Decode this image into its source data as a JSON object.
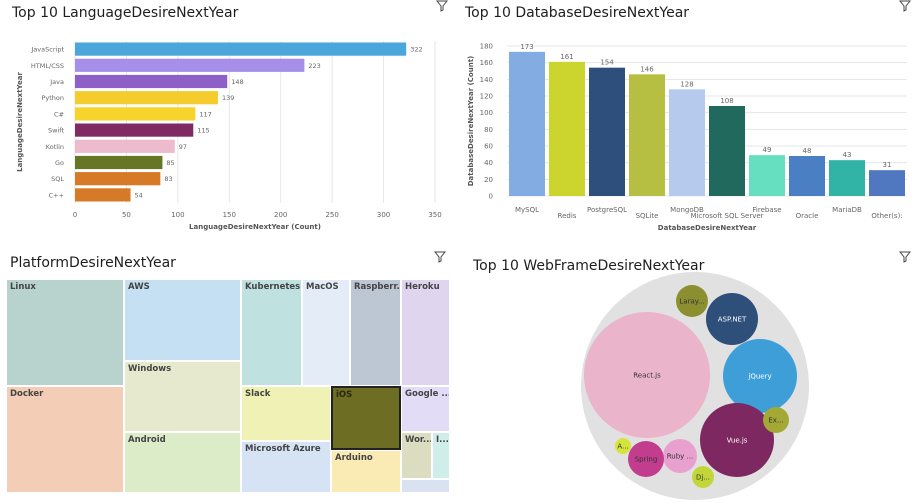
{
  "chart_data": [
    {
      "type": "bar",
      "orientation": "horizontal",
      "title": "Top 10 LanguageDesireNextYear",
      "xlabel": "LanguageDesireNextYear (Count)",
      "ylabel": "LanguageDesireNextYear",
      "categories": [
        "JavaScript",
        "HTML/CSS",
        "Java",
        "Python",
        "C#",
        "Swift",
        "Kotlin",
        "Go",
        "SQL",
        "C++"
      ],
      "values": [
        322,
        223,
        148,
        139,
        117,
        115,
        97,
        85,
        83,
        54
      ],
      "colors": [
        "#4aa6db",
        "#a58fe8",
        "#8d5fc7",
        "#f5cc2e",
        "#f7d32c",
        "#7f2a63",
        "#eebacd",
        "#667624",
        "#d67a28",
        "#d67a28"
      ],
      "xticks": [
        "0",
        "50",
        "100",
        "150",
        "200",
        "250",
        "300",
        "350"
      ],
      "xlim": [
        0,
        350
      ],
      "grid": true
    },
    {
      "type": "bar",
      "title": "Top 10 DatabaseDesireNextYear",
      "xlabel": "DatabaseDesireNextYear",
      "ylabel": "DatabaseDesireNextYear (Count)",
      "categories": [
        "MySQL",
        "Redis",
        "PostgreSQL",
        "SQLite",
        "MongoDB",
        "Microsoft SQL Server",
        "Firebase",
        "Oracle",
        "MariaDB",
        "Other(s):"
      ],
      "values": [
        173,
        161,
        154,
        146,
        128,
        108,
        49,
        48,
        43,
        31
      ],
      "colors": [
        "#82ace2",
        "#ccd42e",
        "#2e4f7c",
        "#b7bf42",
        "#b5caec",
        "#21685d",
        "#65dfc0",
        "#4a7fc4",
        "#31b3a5",
        "#4f78c1"
      ],
      "yticks": [
        "0",
        "20",
        "40",
        "60",
        "80",
        "100",
        "120",
        "140",
        "160",
        "180"
      ],
      "ylim": [
        0,
        180
      ],
      "grid": true
    },
    {
      "type": "treemap",
      "title": "PlatformDesireNextYear",
      "cells": [
        {
          "label": "Linux",
          "color": "#b8d2cd"
        },
        {
          "label": "Docker",
          "color": "#f3cdb5"
        },
        {
          "label": "AWS",
          "color": "#c4e0f2"
        },
        {
          "label": "Windows",
          "color": "#e6e9cd"
        },
        {
          "label": "Android",
          "color": "#dcecc8"
        },
        {
          "label": "Kubernetes",
          "color": "#bfe1e0"
        },
        {
          "label": "Slack",
          "color": "#eff2b4"
        },
        {
          "label": "Microsoft Azure",
          "color": "#d5e3f5"
        },
        {
          "label": "MacOS",
          "color": "#e4ecf8"
        },
        {
          "label": "iOS",
          "color": "#6d6d23"
        },
        {
          "label": "Arduino",
          "color": "#faebb4"
        },
        {
          "label": "Raspberr...",
          "color": "#bcc7d3"
        },
        {
          "label": "Heroku",
          "color": "#e0d5ee"
        },
        {
          "label": "Google ...",
          "color": "#e2dcf7"
        },
        {
          "label": "Wor...",
          "color": "#dcdcc0"
        },
        {
          "label": "I...",
          "color": "#cfeee9"
        },
        {
          "label": "",
          "color": "#d8e2f1"
        }
      ]
    },
    {
      "type": "bubble",
      "title": "Top 10 WebFrameDesireNextYear",
      "bubbles": [
        {
          "label": "React.js",
          "color": "#eab4cb"
        },
        {
          "label": "jQuery",
          "color": "#3e9fd8"
        },
        {
          "label": "Vue.js",
          "color": "#7d2861"
        },
        {
          "label": "ASP.NET",
          "color": "#2d4f7a"
        },
        {
          "label": "Laray...",
          "color": "#8b8f30"
        },
        {
          "label": "Ruby ...",
          "color": "#e8a1cf"
        },
        {
          "label": "Spring",
          "color": "#c33d8e"
        },
        {
          "label": "Ex...",
          "color": "#a4a935"
        },
        {
          "label": "Dj...",
          "color": "#c2d63a"
        },
        {
          "label": "A...",
          "color": "#d4e43a"
        }
      ]
    }
  ]
}
